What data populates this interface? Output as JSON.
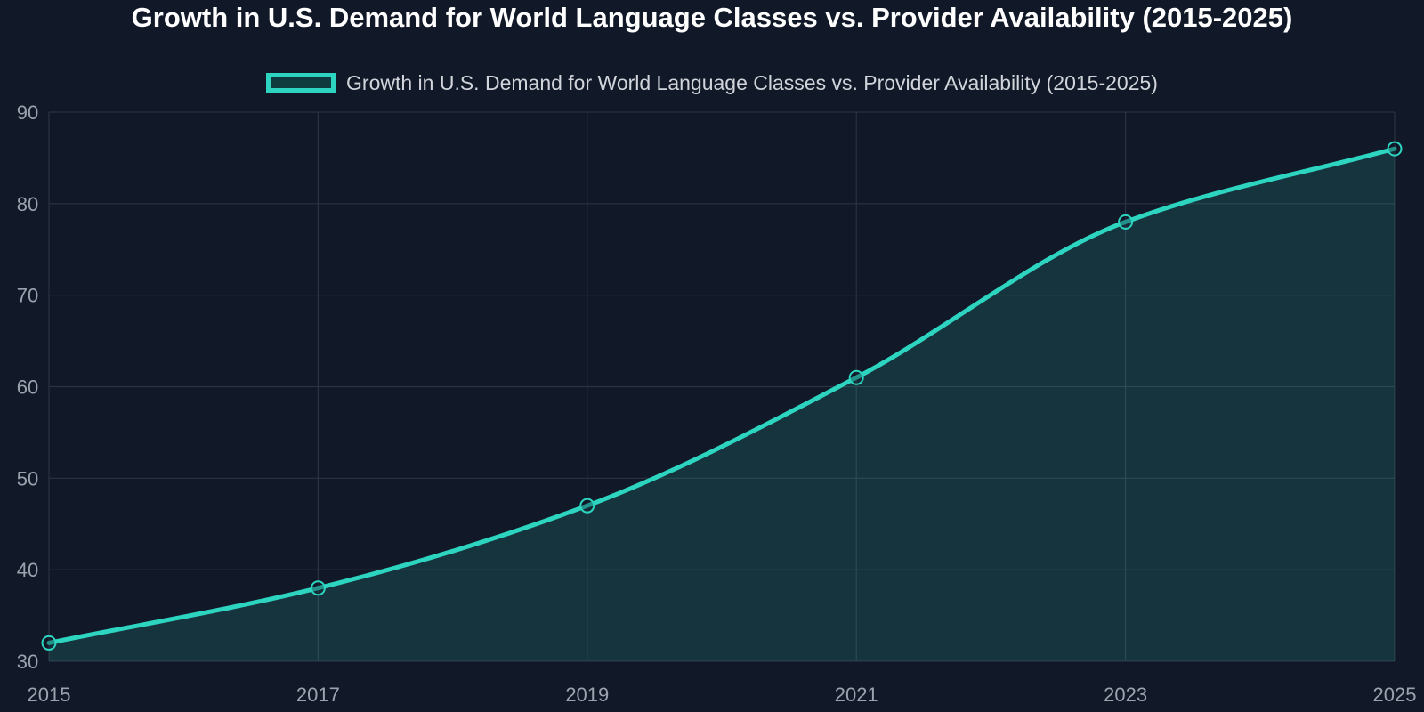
{
  "colors": {
    "background": "#111827",
    "line": "#2dd4bf",
    "area": "#2dd4bf",
    "grid": "#2a3342",
    "text_title": "#ffffff",
    "text_axis": "#9ca3af",
    "text_legend": "#d1d5db"
  },
  "chart_data": {
    "type": "area",
    "title": "Growth in U.S. Demand for World Language Classes vs. Provider Availability (2015-2025)",
    "xlabel": "",
    "ylabel": "",
    "x": [
      "2015",
      "2017",
      "2019",
      "2021",
      "2023",
      "2025"
    ],
    "series": [
      {
        "name": "Growth in U.S. Demand for World Language Classes vs. Provider Availability (2015-2025)",
        "values": [
          32,
          38,
          47,
          61,
          78,
          86
        ]
      }
    ],
    "ylim": [
      30,
      90
    ],
    "yticks": [
      "30",
      "40",
      "50",
      "60",
      "70",
      "80",
      "90"
    ],
    "grid": true,
    "legend_position": "top"
  }
}
